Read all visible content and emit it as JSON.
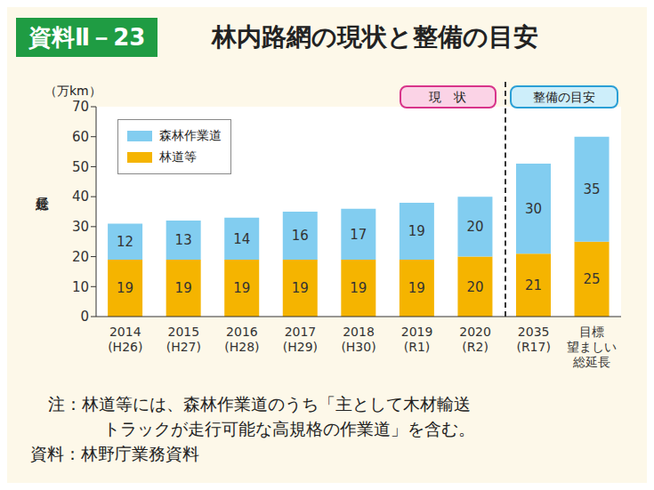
{
  "chart_data": {
    "type": "bar",
    "figure_label": "資料Ⅱ－23",
    "title": "林内路網の現状と整備の目安",
    "y_unit": "（万km）",
    "ylabel": "総延長",
    "region_labels": [
      "現　状",
      "整備の目安"
    ],
    "categories": [
      "2014\n(H26)",
      "2015\n(H27)",
      "2016\n(H28)",
      "2017\n(H29)",
      "2018\n(H30)",
      "2019\n(R1)",
      "2020\n(R2)",
      "2035\n(R17)",
      "目標\n望ましい\n総延長"
    ],
    "series": [
      {
        "name": "林道等",
        "color": "#f5b400",
        "values": [
          19,
          19,
          19,
          19,
          19,
          19,
          20,
          21,
          25
        ]
      },
      {
        "name": "森林作業道",
        "color": "#82cdf0",
        "values": [
          12,
          13,
          14,
          16,
          17,
          19,
          20,
          30,
          35
        ]
      }
    ],
    "ylim": [
      0,
      70
    ],
    "yticks": [
      0,
      10,
      20,
      30,
      40,
      50,
      60,
      70
    ],
    "grid": false,
    "stacked": true,
    "data_labels": true,
    "legend": "upper left",
    "notes": [
      "注：林道等には、森林作業道のうち「主として木材輸送",
      "トラックが走行可能な高規格の作業道」を含む。"
    ],
    "source": "資料：林野庁業務資料"
  }
}
